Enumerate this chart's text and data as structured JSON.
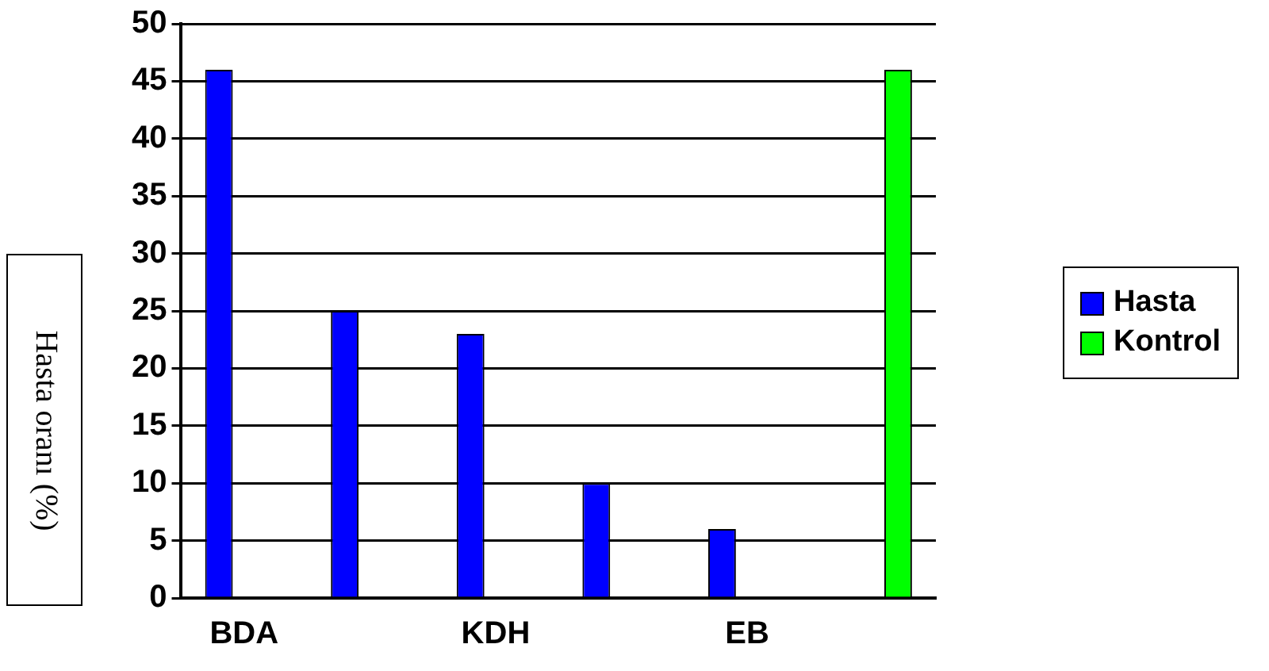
{
  "chart_data": {
    "type": "bar",
    "ylabel": "Hasta oranı (%)",
    "categories": [
      "BDA",
      null,
      "KDH",
      null,
      "EB",
      null
    ],
    "series": [
      {
        "name": "Hasta",
        "color": "#0000ff",
        "values": [
          46,
          25,
          23,
          10,
          6,
          null
        ]
      },
      {
        "name": "Kontrol",
        "color": "#00ff00",
        "values": [
          null,
          null,
          null,
          null,
          null,
          46
        ]
      }
    ],
    "ylim": [
      0,
      50
    ],
    "yticks": [
      0,
      5,
      10,
      15,
      20,
      25,
      30,
      35,
      40,
      45,
      50
    ],
    "grid": "y",
    "legend": "right"
  }
}
